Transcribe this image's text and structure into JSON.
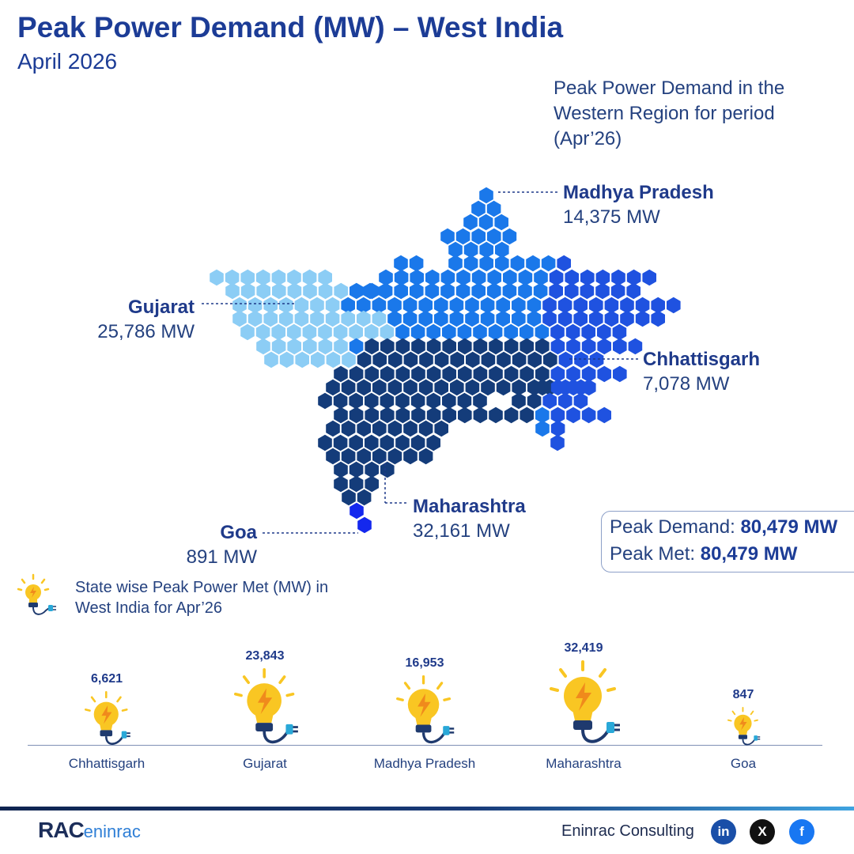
{
  "header": {
    "title": "Peak Power Demand (MW) – West India",
    "subtitle": "April 2026"
  },
  "map": {
    "caption": "Peak Power Demand in the Western Region for period (Apr’26)",
    "states": [
      {
        "name": "Madhya Pradesh",
        "value": "14,375 MW",
        "color": "#1a78ea"
      },
      {
        "name": "Gujarat",
        "value": "25,786 MW",
        "color": "#8ccdf5"
      },
      {
        "name": "Chhattisgarh",
        "value": "7,078 MW",
        "color": "#1f52e0"
      },
      {
        "name": "Maharashtra",
        "value": "32,161 MW",
        "color": "#143c7a"
      },
      {
        "name": "Goa",
        "value": "891 MW",
        "color": "#1428ee"
      }
    ]
  },
  "summary": {
    "demand_label": "Peak Demand:",
    "demand_value": "80,479 MW",
    "met_label": "Peak Met:",
    "met_value": "80,479 MW"
  },
  "chart_data": {
    "type": "bar",
    "title": "State wise Peak Power Met (MW) in West India for Apr’26",
    "categories": [
      "Chhattisgarh",
      "Gujarat",
      "Madhya Pradesh",
      "Maharashtra",
      "Goa"
    ],
    "values": [
      6621,
      23843,
      16953,
      32419,
      847
    ],
    "value_labels": [
      "6,621",
      "23,843",
      "16,953",
      "32,419",
      "847"
    ],
    "mark": "lightbulb-icon",
    "colors": {
      "bulb": "#f9c623",
      "bolt": "#f08a1c",
      "base": "#1f3a6e",
      "plug": "#29a8d8"
    }
  },
  "footer": {
    "logo_text": "RAC",
    "logo_suffix": "eninrac",
    "brand": "Eninrac Consulting",
    "social": [
      {
        "icon": "linkedin-icon",
        "glyph": "in",
        "color": "#1a4fa8"
      },
      {
        "icon": "x-icon",
        "glyph": "X",
        "color": "#111111"
      },
      {
        "icon": "facebook-icon",
        "glyph": "f",
        "color": "#1877f2"
      }
    ]
  }
}
